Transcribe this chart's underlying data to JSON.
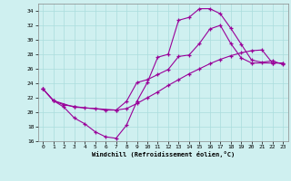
{
  "xlabel": "Windchill (Refroidissement éolien,°C)",
  "bg_color": "#cff0f0",
  "grid_color": "#aadddd",
  "line_color": "#990099",
  "xlim": [
    -0.5,
    23.5
  ],
  "ylim": [
    16,
    35
  ],
  "yticks": [
    16,
    18,
    20,
    22,
    24,
    26,
    28,
    30,
    32,
    34
  ],
  "xticks": [
    0,
    1,
    2,
    3,
    4,
    5,
    6,
    7,
    8,
    9,
    10,
    11,
    12,
    13,
    14,
    15,
    16,
    17,
    18,
    19,
    20,
    21,
    22,
    23
  ],
  "series1_x": [
    0,
    1,
    2,
    3,
    4,
    5,
    6,
    7,
    8,
    9,
    10,
    11,
    12,
    13,
    14,
    15,
    16,
    17,
    18,
    19,
    20,
    21,
    22,
    23
  ],
  "series1_y": [
    23.2,
    21.6,
    20.7,
    19.2,
    18.4,
    17.3,
    16.6,
    16.4,
    18.2,
    21.5,
    24.1,
    27.6,
    28.0,
    32.7,
    33.1,
    34.3,
    34.3,
    33.6,
    31.6,
    29.4,
    27.2,
    26.9,
    27.1,
    26.6
  ],
  "series2_x": [
    0,
    1,
    2,
    3,
    4,
    5,
    6,
    7,
    8,
    9,
    10,
    11,
    12,
    13,
    14,
    15,
    16,
    17,
    18,
    19,
    20,
    21,
    22,
    23
  ],
  "series2_y": [
    23.2,
    21.6,
    21.0,
    20.8,
    20.6,
    20.5,
    20.3,
    20.3,
    20.5,
    21.2,
    22.0,
    22.8,
    23.7,
    24.5,
    25.3,
    26.0,
    26.7,
    27.3,
    27.8,
    28.2,
    28.5,
    28.6,
    26.8,
    26.8
  ],
  "series3_x": [
    0,
    1,
    3,
    7,
    8,
    9,
    10,
    11,
    12,
    13,
    14,
    15,
    16,
    17,
    18,
    19,
    20,
    22,
    23
  ],
  "series3_y": [
    23.2,
    21.6,
    20.7,
    20.3,
    21.5,
    24.1,
    24.5,
    25.2,
    25.9,
    27.7,
    27.9,
    29.5,
    31.5,
    32.0,
    29.5,
    27.5,
    26.8,
    26.8,
    26.8
  ]
}
